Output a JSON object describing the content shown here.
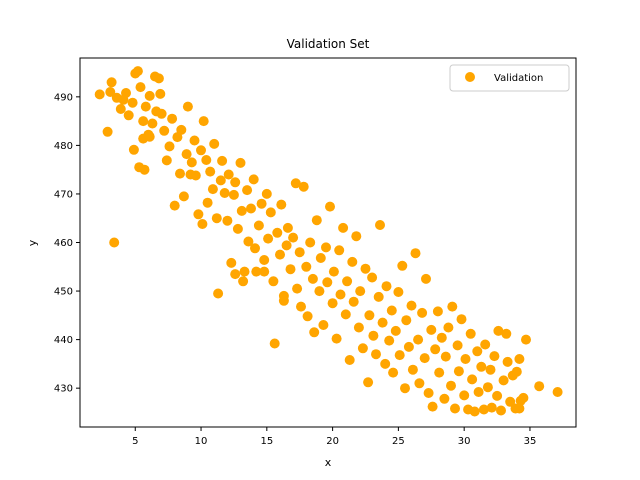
{
  "chart_data": {
    "type": "scatter",
    "title": "Validation Set",
    "xlabel": "x",
    "ylabel": "y",
    "xlim": [
      0.8,
      38.5
    ],
    "ylim": [
      422,
      498
    ],
    "xticks": [
      5,
      10,
      15,
      20,
      25,
      30,
      35
    ],
    "yticks": [
      430,
      440,
      450,
      460,
      470,
      480,
      490
    ],
    "grid": false,
    "legend": {
      "position": "upper-right"
    },
    "series": [
      {
        "name": "Validation",
        "color": "#FFA500",
        "points": [
          [
            2.3,
            490.5
          ],
          [
            2.9,
            482.8
          ],
          [
            3.1,
            491.0
          ],
          [
            3.2,
            493.0
          ],
          [
            3.4,
            460.0
          ],
          [
            3.6,
            489.8
          ],
          [
            3.9,
            487.5
          ],
          [
            4.1,
            489.4
          ],
          [
            4.3,
            490.8
          ],
          [
            4.5,
            486.2
          ],
          [
            4.8,
            488.8
          ],
          [
            5.0,
            494.8
          ],
          [
            5.2,
            495.3
          ],
          [
            5.3,
            475.5
          ],
          [
            5.4,
            492.0
          ],
          [
            5.6,
            485.0
          ],
          [
            5.7,
            475.0
          ],
          [
            5.8,
            488.0
          ],
          [
            6.0,
            482.2
          ],
          [
            6.1,
            490.2
          ],
          [
            6.3,
            484.5
          ],
          [
            6.5,
            494.2
          ],
          [
            6.6,
            487.0
          ],
          [
            6.8,
            493.8
          ],
          [
            4.9,
            479.1
          ],
          [
            5.6,
            481.4
          ],
          [
            6.1,
            481.8
          ],
          [
            6.9,
            490.6
          ],
          [
            7.0,
            486.5
          ],
          [
            7.2,
            483.0
          ],
          [
            7.4,
            476.9
          ],
          [
            7.6,
            479.8
          ],
          [
            7.8,
            485.5
          ],
          [
            8.0,
            467.6
          ],
          [
            8.2,
            481.7
          ],
          [
            8.4,
            474.2
          ],
          [
            8.5,
            483.2
          ],
          [
            8.7,
            469.5
          ],
          [
            8.9,
            478.2
          ],
          [
            9.0,
            488.0
          ],
          [
            9.2,
            474.0
          ],
          [
            9.3,
            476.5
          ],
          [
            9.5,
            481.0
          ],
          [
            9.6,
            473.8
          ],
          [
            9.8,
            465.8
          ],
          [
            10.0,
            479.0
          ],
          [
            10.1,
            463.8
          ],
          [
            10.2,
            485.0
          ],
          [
            10.4,
            477.0
          ],
          [
            10.5,
            468.2
          ],
          [
            10.7,
            474.6
          ],
          [
            10.9,
            471.0
          ],
          [
            11.0,
            480.3
          ],
          [
            11.2,
            465.0
          ],
          [
            11.3,
            449.5
          ],
          [
            11.5,
            472.8
          ],
          [
            11.6,
            476.8
          ],
          [
            11.8,
            470.2
          ],
          [
            12.0,
            464.5
          ],
          [
            12.1,
            474.0
          ],
          [
            12.3,
            455.8
          ],
          [
            12.5,
            469.8
          ],
          [
            12.6,
            472.4
          ],
          [
            12.8,
            462.8
          ],
          [
            13.0,
            476.4
          ],
          [
            13.1,
            466.5
          ],
          [
            13.2,
            452.0
          ],
          [
            13.3,
            454.0
          ],
          [
            13.5,
            470.8
          ],
          [
            13.6,
            460.2
          ],
          [
            13.8,
            467.0
          ],
          [
            14.0,
            473.0
          ],
          [
            14.1,
            458.8
          ],
          [
            14.2,
            454.0
          ],
          [
            14.4,
            463.5
          ],
          [
            14.6,
            468.0
          ],
          [
            14.8,
            456.4
          ],
          [
            15.0,
            470.0
          ],
          [
            15.1,
            460.8
          ],
          [
            15.3,
            466.2
          ],
          [
            15.5,
            452.0
          ],
          [
            15.6,
            439.2
          ],
          [
            15.8,
            462.0
          ],
          [
            16.0,
            457.5
          ],
          [
            16.1,
            467.8
          ],
          [
            16.3,
            449.0
          ],
          [
            16.5,
            459.4
          ],
          [
            16.6,
            463.0
          ],
          [
            16.8,
            454.5
          ],
          [
            17.0,
            461.0
          ],
          [
            17.2,
            472.2
          ],
          [
            17.3,
            450.5
          ],
          [
            17.5,
            458.0
          ],
          [
            17.6,
            446.8
          ],
          [
            17.8,
            471.5
          ],
          [
            18.0,
            455.0
          ],
          [
            18.1,
            444.8
          ],
          [
            18.3,
            460.0
          ],
          [
            18.5,
            452.5
          ],
          [
            18.6,
            441.5
          ],
          [
            18.8,
            464.6
          ],
          [
            19.0,
            450.0
          ],
          [
            19.1,
            456.8
          ],
          [
            19.3,
            443.0
          ],
          [
            19.5,
            459.0
          ],
          [
            19.6,
            451.8
          ],
          [
            19.8,
            467.4
          ],
          [
            20.0,
            447.5
          ],
          [
            20.1,
            454.0
          ],
          [
            20.3,
            440.2
          ],
          [
            20.5,
            458.4
          ],
          [
            20.6,
            449.3
          ],
          [
            20.8,
            463.0
          ],
          [
            21.0,
            445.2
          ],
          [
            21.1,
            452.0
          ],
          [
            21.3,
            435.8
          ],
          [
            21.5,
            456.0
          ],
          [
            21.6,
            447.8
          ],
          [
            21.8,
            461.3
          ],
          [
            22.0,
            442.5
          ],
          [
            22.1,
            450.0
          ],
          [
            22.3,
            438.2
          ],
          [
            22.5,
            454.6
          ],
          [
            22.7,
            431.2
          ],
          [
            22.8,
            445.0
          ],
          [
            23.0,
            452.8
          ],
          [
            23.1,
            440.8
          ],
          [
            23.3,
            437.0
          ],
          [
            23.5,
            448.8
          ],
          [
            23.6,
            463.6
          ],
          [
            23.8,
            443.5
          ],
          [
            24.0,
            435.0
          ],
          [
            24.1,
            451.0
          ],
          [
            24.3,
            439.8
          ],
          [
            24.5,
            446.0
          ],
          [
            24.6,
            433.2
          ],
          [
            24.8,
            441.8
          ],
          [
            25.0,
            449.8
          ],
          [
            25.1,
            436.8
          ],
          [
            25.3,
            455.2
          ],
          [
            25.5,
            430.0
          ],
          [
            25.6,
            444.0
          ],
          [
            25.8,
            438.5
          ],
          [
            26.0,
            447.0
          ],
          [
            26.1,
            433.8
          ],
          [
            26.3,
            457.8
          ],
          [
            26.5,
            440.0
          ],
          [
            26.6,
            431.0
          ],
          [
            26.8,
            445.5
          ],
          [
            27.0,
            436.2
          ],
          [
            27.1,
            452.5
          ],
          [
            27.3,
            429.0
          ],
          [
            27.5,
            442.0
          ],
          [
            27.6,
            426.2
          ],
          [
            27.8,
            438.0
          ],
          [
            28.0,
            445.8
          ],
          [
            28.1,
            433.2
          ],
          [
            28.3,
            440.4
          ],
          [
            28.5,
            427.8
          ],
          [
            28.6,
            436.5
          ],
          [
            28.8,
            442.5
          ],
          [
            29.0,
            430.5
          ],
          [
            29.1,
            446.8
          ],
          [
            29.3,
            425.8
          ],
          [
            29.5,
            438.8
          ],
          [
            29.6,
            433.5
          ],
          [
            29.8,
            444.2
          ],
          [
            30.0,
            428.5
          ],
          [
            30.1,
            436.0
          ],
          [
            30.3,
            425.6
          ],
          [
            30.5,
            441.2
          ],
          [
            30.6,
            431.8
          ],
          [
            30.8,
            425.2
          ],
          [
            31.0,
            437.6
          ],
          [
            31.1,
            429.2
          ],
          [
            31.3,
            434.4
          ],
          [
            31.5,
            425.6
          ],
          [
            31.6,
            439.0
          ],
          [
            31.8,
            430.2
          ],
          [
            32.0,
            433.8
          ],
          [
            32.1,
            426.0
          ],
          [
            32.3,
            436.6
          ],
          [
            32.5,
            428.4
          ],
          [
            32.6,
            441.8
          ],
          [
            32.8,
            425.4
          ],
          [
            33.0,
            431.6
          ],
          [
            33.2,
            441.2
          ],
          [
            33.3,
            435.4
          ],
          [
            33.5,
            427.2
          ],
          [
            33.7,
            432.6
          ],
          [
            33.9,
            425.8
          ],
          [
            34.0,
            433.4
          ],
          [
            34.2,
            436.0
          ],
          [
            34.3,
            427.4
          ],
          [
            34.5,
            428.0
          ],
          [
            34.7,
            440.0
          ],
          [
            34.2,
            425.8
          ],
          [
            35.7,
            430.4
          ],
          [
            37.1,
            429.2
          ],
          [
            12.6,
            453.5
          ],
          [
            14.8,
            454.0
          ],
          [
            16.3,
            448.0
          ]
        ]
      }
    ]
  }
}
